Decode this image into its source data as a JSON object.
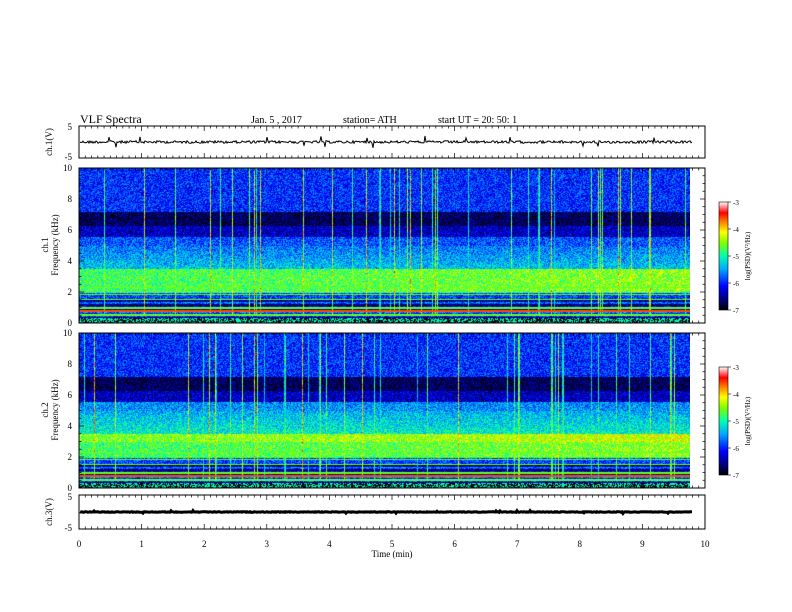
{
  "header": {
    "title": "VLF Spectra",
    "date": "Jan. 5 , 2017",
    "station": "station= ATH",
    "start": "start UT = 20: 50: 1"
  },
  "chart_data": [
    {
      "type": "line",
      "name": "ch1-waveform",
      "ylabel": "ch.1(V)",
      "ylim": [
        -5,
        5
      ],
      "yticks": [
        "5",
        "-5"
      ],
      "xlim": [
        0,
        10
      ],
      "level": 0
    },
    {
      "type": "heatmap",
      "name": "ch1-spectrogram",
      "ylabel_lines": [
        "ch.1",
        "Frequency (kHz)"
      ],
      "ylim": [
        0,
        10
      ],
      "yticks": [
        "0",
        "2",
        "4",
        "6",
        "8",
        "10"
      ],
      "xlim": [
        0,
        10
      ],
      "data_end_min": 9.8,
      "colorbar": {
        "label": "log(PSD)(V²/Hz)",
        "range": [
          -7,
          -3
        ],
        "ticks": [
          "-3",
          "-4",
          "-5",
          "-6",
          "-7"
        ]
      }
    },
    {
      "type": "heatmap",
      "name": "ch2-spectrogram",
      "ylabel_lines": [
        "ch.2",
        "Frequency (kHz)"
      ],
      "ylim": [
        0,
        10
      ],
      "yticks": [
        "0",
        "2",
        "4",
        "6",
        "8",
        "10"
      ],
      "xlim": [
        0,
        10
      ],
      "data_end_min": 9.8,
      "colorbar": {
        "label": "log(PSD)(V²/Hz)",
        "range": [
          -7,
          -3
        ],
        "ticks": [
          "-3",
          "-4",
          "-5",
          "-6",
          "-7"
        ]
      }
    },
    {
      "type": "line",
      "name": "ch3-waveform",
      "ylabel": "ch.3(V)",
      "ylim": [
        -5,
        5
      ],
      "yticks": [
        "5",
        "-5"
      ],
      "xlim": [
        0,
        10
      ],
      "level": 0
    }
  ],
  "xaxis": {
    "label": "Time (min)",
    "ticks": [
      "0",
      "1",
      "2",
      "3",
      "4",
      "5",
      "6",
      "7",
      "8",
      "9",
      "10"
    ]
  },
  "colors": {
    "axis": "#000000",
    "background": "#ffffff"
  }
}
